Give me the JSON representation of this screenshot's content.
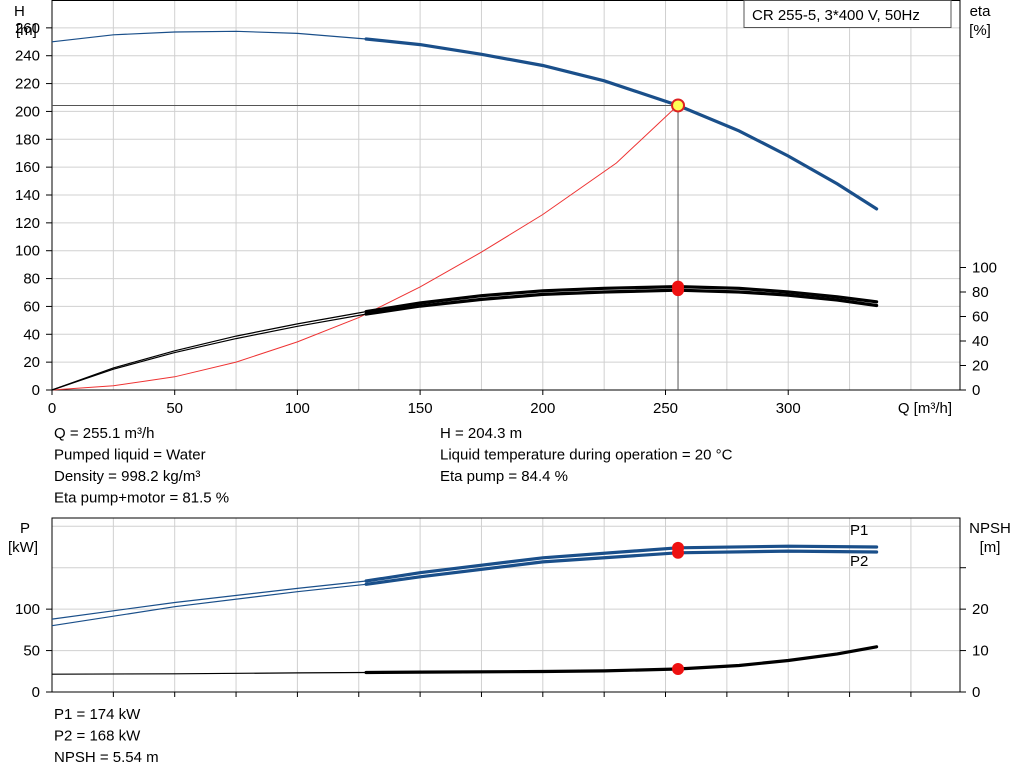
{
  "chart_data": [
    {
      "type": "line",
      "title": "CR 255-5, 3*400 V, 50Hz",
      "xlabel": "Q [m³/h]",
      "ylabel": "H\n[m]",
      "ylabel_right": "eta\n[%]",
      "xlim": [
        0,
        370
      ],
      "ylim": [
        0,
        280
      ],
      "xticks": [
        0,
        50,
        100,
        150,
        200,
        250,
        300
      ],
      "yticks": [
        0,
        20,
        40,
        60,
        80,
        100,
        120,
        140,
        160,
        180,
        200,
        220,
        240,
        260
      ],
      "yticks_right": [
        0,
        20,
        40,
        60,
        80,
        100
      ],
      "grid": true,
      "series": [
        {
          "id": "H",
          "color": "#1a4f8a",
          "x": [
            0,
            25,
            50,
            75,
            100,
            128,
            150,
            175,
            200,
            225,
            255,
            280,
            300,
            320,
            336
          ],
          "y": [
            250,
            255,
            257,
            257.5,
            256,
            252,
            248,
            241,
            233,
            222,
            204.3,
            186,
            168,
            148,
            130
          ]
        },
        {
          "id": "eta_pump",
          "color": "#000000",
          "x": [
            0,
            25,
            50,
            75,
            100,
            128,
            150,
            175,
            200,
            225,
            255,
            280,
            300,
            320,
            336
          ],
          "y": [
            0,
            18,
            32,
            44,
            54,
            64,
            71,
            77,
            81,
            83,
            84.4,
            83,
            80,
            76,
            72
          ]
        },
        {
          "id": "eta_pump_motor",
          "color": "#000000",
          "x": [
            0,
            25,
            50,
            75,
            100,
            128,
            150,
            175,
            200,
            225,
            255,
            280,
            300,
            320,
            336
          ],
          "y": [
            0,
            17,
            30.5,
            42,
            52,
            62,
            68.5,
            74,
            78,
            80,
            81.5,
            80,
            77.5,
            73.5,
            69
          ]
        },
        {
          "id": "system_curve",
          "color": "#ee3333",
          "x": [
            0,
            25,
            50,
            75,
            100,
            125,
            150,
            175,
            200,
            230,
            255
          ],
          "y": [
            0,
            3,
            9.5,
            20,
            34.5,
            52,
            74,
            99,
            126,
            163,
            204.3
          ]
        }
      ],
      "operating_point": {
        "Q": 255.1,
        "H": 204.3,
        "eta_pump": 84.4,
        "eta_pump_motor": 81.5
      },
      "info": {
        "left": [
          "Q = 255.1 m³/h",
          "Pumped liquid = Water",
          "Density = 998.2 kg/m³",
          "Eta pump+motor = 81.5 %"
        ],
        "right": [
          "H = 204.3 m",
          "Liquid temperature during operation = 20 °C",
          "Eta pump = 84.4 %"
        ]
      }
    },
    {
      "type": "line",
      "ylabel": "P\n[kW]",
      "ylabel_right": "NPSH\n[m]",
      "xlim": [
        0,
        370
      ],
      "ylim": [
        0,
        210
      ],
      "yticks": [
        0,
        50,
        100
      ],
      "yticks_right": [
        0,
        10,
        20
      ],
      "y2lim": [
        0,
        42
      ],
      "grid": true,
      "series": [
        {
          "id": "P1",
          "name": "P1",
          "color": "#1a4f8a",
          "x": [
            0,
            50,
            100,
            128,
            150,
            200,
            255,
            300,
            336
          ],
          "y": [
            88,
            108,
            125,
            134,
            144,
            162,
            174,
            176,
            175
          ]
        },
        {
          "id": "P2",
          "name": "P2",
          "color": "#1a4f8a",
          "x": [
            0,
            50,
            100,
            128,
            150,
            200,
            255,
            300,
            336
          ],
          "y": [
            80,
            103,
            121,
            130,
            139,
            157,
            168,
            170,
            169
          ]
        },
        {
          "id": "NPSH",
          "color": "#000000",
          "axis": "right",
          "x": [
            0,
            50,
            100,
            128,
            150,
            200,
            225,
            255,
            280,
            300,
            320,
            336
          ],
          "y": [
            4.3,
            4.4,
            4.6,
            4.7,
            4.8,
            4.95,
            5.1,
            5.54,
            6.4,
            7.6,
            9.2,
            10.9
          ]
        }
      ],
      "operating_point": {
        "Q": 255.1,
        "P1": 174,
        "P2": 168,
        "NPSH": 5.54
      },
      "info": [
        "P1 = 174 kW",
        "P2 = 168 kW",
        "NPSH = 5.54 m"
      ]
    }
  ]
}
